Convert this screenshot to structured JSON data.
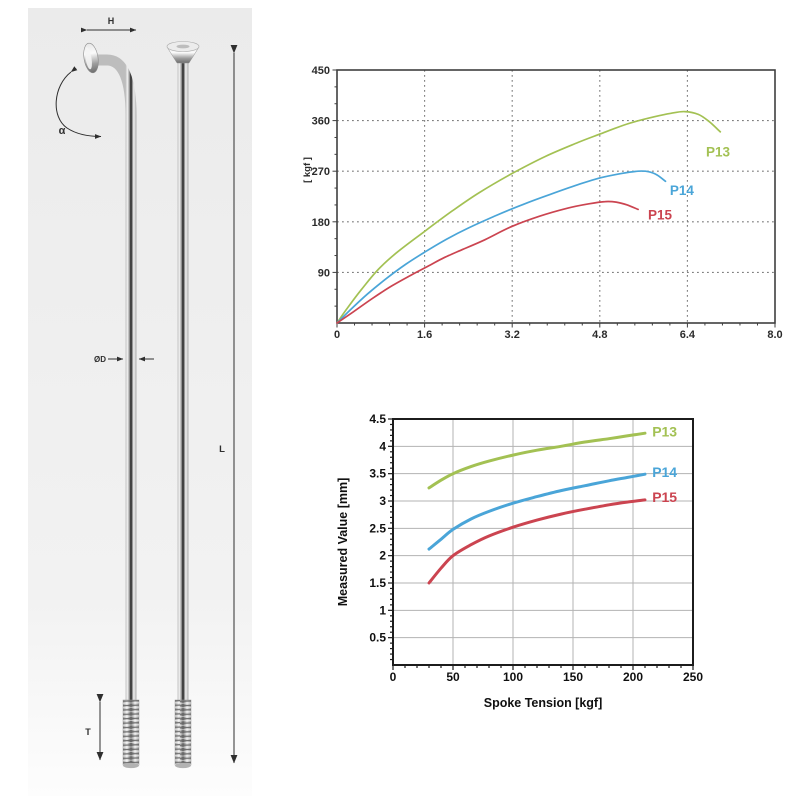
{
  "page": {
    "background": "#ffffff"
  },
  "diagram": {
    "description": "bicycle spoke technical drawing, J-bend and straight spoke",
    "labels": {
      "head_width": "H",
      "angle": "α",
      "diameter": "ØD",
      "length": "L",
      "thread": "T"
    }
  },
  "colors": {
    "p13_green": "#a3c153",
    "p14_blue": "#4aa5d8",
    "p15_red": "#cb4450",
    "grid_dashed": "#7f7f7f",
    "grid_solid": "#b3b3b3",
    "axis_dark": "#3f3f3f"
  },
  "chart_data": [
    {
      "type": "line",
      "title": "",
      "xlabel": "",
      "ylabel": "[ kgf ]",
      "xlim": [
        0,
        8.0
      ],
      "ylim": [
        0,
        450
      ],
      "x_ticks": [
        0,
        1.6,
        3.2,
        4.8,
        6.4,
        8.0
      ],
      "x_tick_labels": [
        "0",
        "1.6",
        "3.2",
        "4.8",
        "6.4",
        "8.0"
      ],
      "y_ticks": [
        90,
        180,
        270,
        360,
        450
      ],
      "y_tick_labels": [
        "90",
        "180",
        "270",
        "360",
        "450"
      ],
      "x_minor_step": 0.32,
      "y_minor_step": 30,
      "grid": "dashed",
      "legend_position": "inline-right",
      "series": [
        {
          "name": "P13",
          "color": "#a3c153",
          "label_pos": [
            6.74,
            296
          ],
          "points": [
            [
              0,
              0
            ],
            [
              0.2,
              28
            ],
            [
              0.45,
              60
            ],
            [
              0.75,
              95
            ],
            [
              1.1,
              126
            ],
            [
              1.6,
              163
            ],
            [
              2.1,
              199
            ],
            [
              2.6,
              232
            ],
            [
              3.2,
              266
            ],
            [
              3.8,
              296
            ],
            [
              4.4,
              321
            ],
            [
              4.8,
              336
            ],
            [
              5.3,
              354
            ],
            [
              5.8,
              367
            ],
            [
              6.1,
              373
            ],
            [
              6.35,
              376
            ],
            [
              6.6,
              371
            ],
            [
              6.8,
              358
            ],
            [
              7.0,
              340
            ]
          ]
        },
        {
          "name": "P14",
          "color": "#4aa5d8",
          "label_pos": [
            6.08,
            228
          ],
          "points": [
            [
              0,
              0
            ],
            [
              0.25,
              24
            ],
            [
              0.55,
              51
            ],
            [
              0.9,
              79
            ],
            [
              1.25,
              104
            ],
            [
              1.6,
              126
            ],
            [
              2.0,
              149
            ],
            [
              2.4,
              169
            ],
            [
              2.9,
              191
            ],
            [
              3.4,
              211
            ],
            [
              3.9,
              229
            ],
            [
              4.4,
              246
            ],
            [
              4.8,
              258
            ],
            [
              5.2,
              266
            ],
            [
              5.5,
              270
            ],
            [
              5.7,
              269
            ],
            [
              5.85,
              263
            ],
            [
              6.0,
              252
            ]
          ]
        },
        {
          "name": "P15",
          "color": "#cb4450",
          "label_pos": [
            5.68,
            184
          ],
          "points": [
            [
              0,
              0
            ],
            [
              0.3,
              20
            ],
            [
              0.65,
              44
            ],
            [
              1.0,
              66
            ],
            [
              1.35,
              85
            ],
            [
              1.7,
              103
            ],
            [
              1.95,
              116
            ],
            [
              2.3,
              131
            ],
            [
              2.7,
              148
            ],
            [
              3.2,
              172
            ],
            [
              3.7,
              190
            ],
            [
              4.2,
              204
            ],
            [
              4.6,
              212
            ],
            [
              4.9,
              216
            ],
            [
              5.1,
              215
            ],
            [
              5.3,
              210
            ],
            [
              5.5,
              202
            ]
          ]
        }
      ]
    },
    {
      "type": "line",
      "title": "",
      "xlabel": "Spoke Tension [kgf]",
      "ylabel": "Measured Value [mm]",
      "xlim": [
        0,
        250
      ],
      "ylim": [
        0,
        4.5
      ],
      "x_ticks": [
        0,
        50,
        100,
        150,
        200,
        250
      ],
      "x_tick_labels": [
        "0",
        "50",
        "100",
        "150",
        "200",
        "250"
      ],
      "y_ticks": [
        0.5,
        1,
        1.5,
        2,
        2.5,
        3,
        3.5,
        4,
        4.5
      ],
      "y_tick_labels": [
        "0.5",
        "1",
        "1.5",
        "2",
        "2.5",
        "3",
        "3.5",
        "4",
        "4.5"
      ],
      "x_minor_step": 10,
      "y_minor_step": 0.1,
      "grid": "solid",
      "legend_position": "inline-right",
      "series": [
        {
          "name": "P13",
          "color": "#a3c153",
          "label_pos": [
            216,
            4.18
          ],
          "points": [
            [
              30,
              3.24
            ],
            [
              40,
              3.38
            ],
            [
              50,
              3.5
            ],
            [
              65,
              3.63
            ],
            [
              80,
              3.73
            ],
            [
              100,
              3.84
            ],
            [
              120,
              3.93
            ],
            [
              140,
              4.0
            ],
            [
              160,
              4.08
            ],
            [
              180,
              4.14
            ],
            [
              195,
              4.19
            ],
            [
              210,
              4.24
            ]
          ]
        },
        {
          "name": "P14",
          "color": "#4aa5d8",
          "label_pos": [
            216,
            3.44
          ],
          "points": [
            [
              30,
              2.12
            ],
            [
              40,
              2.3
            ],
            [
              50,
              2.48
            ],
            [
              65,
              2.67
            ],
            [
              80,
              2.81
            ],
            [
              100,
              2.96
            ],
            [
              120,
              3.08
            ],
            [
              140,
              3.19
            ],
            [
              160,
              3.28
            ],
            [
              180,
              3.37
            ],
            [
              195,
              3.43
            ],
            [
              210,
              3.49
            ]
          ]
        },
        {
          "name": "P15",
          "color": "#cb4450",
          "label_pos": [
            216,
            2.98
          ],
          "points": [
            [
              30,
              1.5
            ],
            [
              40,
              1.77
            ],
            [
              50,
              2.0
            ],
            [
              65,
              2.2
            ],
            [
              80,
              2.36
            ],
            [
              100,
              2.52
            ],
            [
              120,
              2.65
            ],
            [
              140,
              2.76
            ],
            [
              160,
              2.85
            ],
            [
              180,
              2.93
            ],
            [
              195,
              2.98
            ],
            [
              210,
              3.02
            ]
          ]
        }
      ]
    }
  ]
}
